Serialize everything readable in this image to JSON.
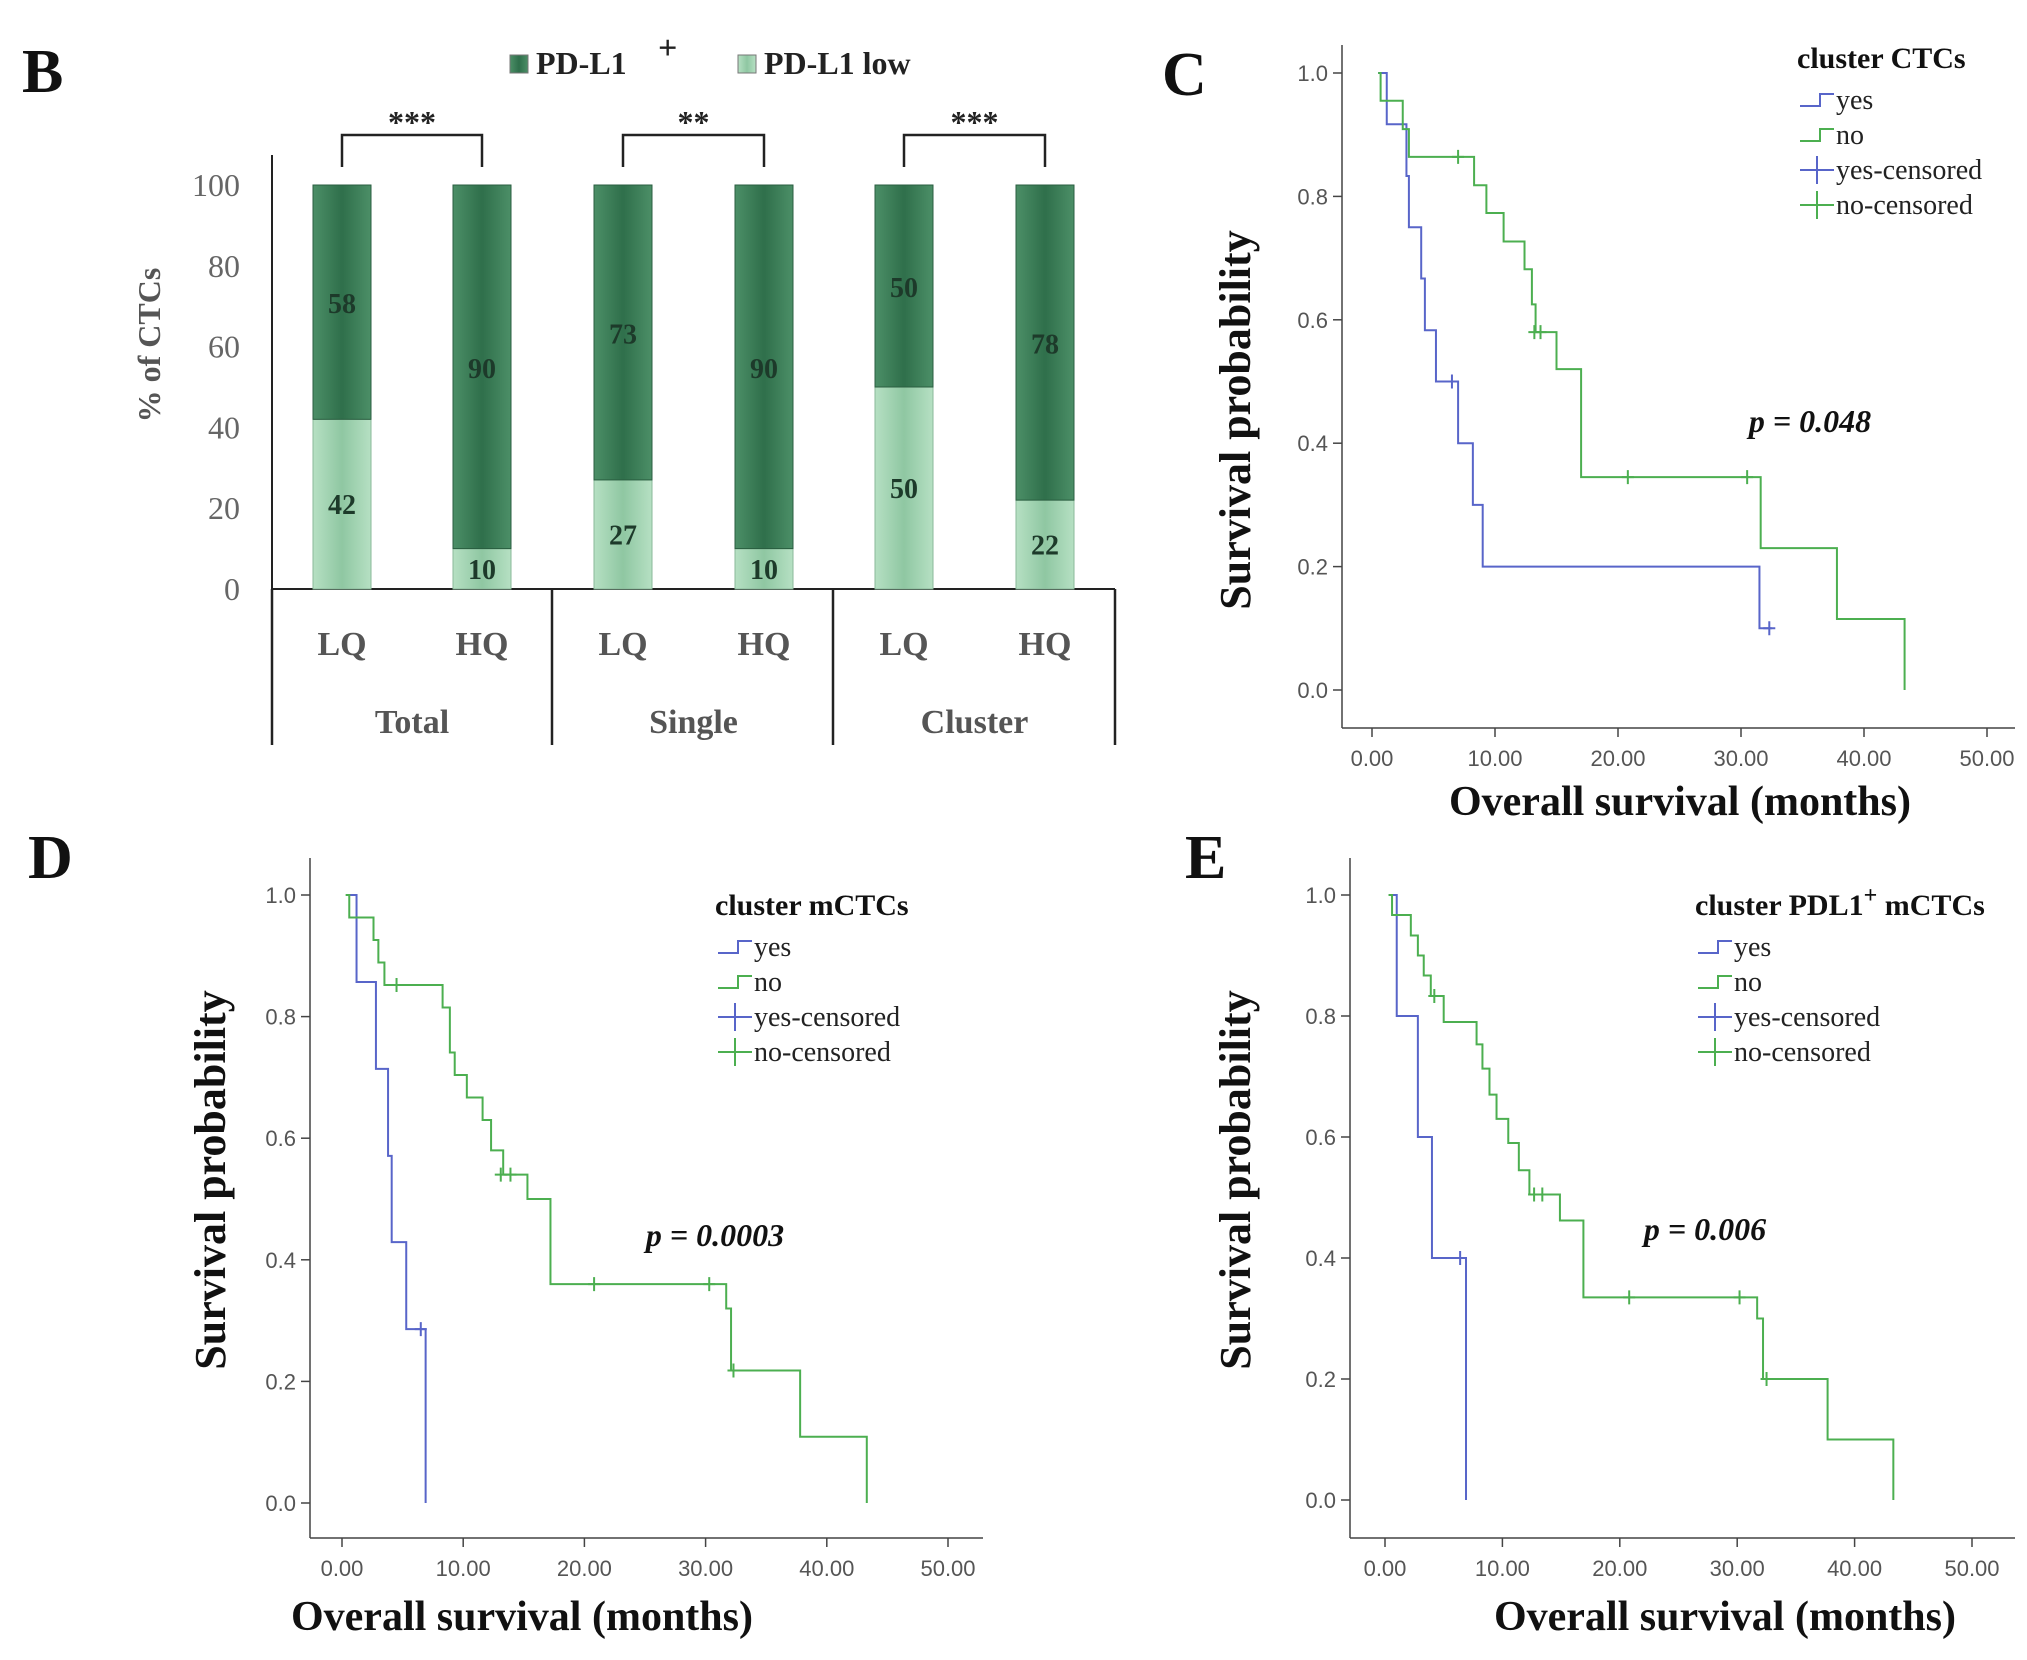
{
  "colors": {
    "pdl1_pos_dark": "#2e6e4a",
    "pdl1_pos_mid": "#5b9a74",
    "pdl1_low_light": "#a8d8b8",
    "pdl1_low_mid": "#c9e9d3",
    "yes_line": "#5865c9",
    "no_line": "#4caf50",
    "axis": "#222222",
    "tick_text": "#555555"
  },
  "chart_data": [
    {
      "id": "B",
      "panel_label": "B",
      "type": "bar",
      "stacked": true,
      "ylabel": "% of CTCs",
      "ylim": [
        0,
        100
      ],
      "yticks": [
        "0",
        "20",
        "40",
        "60",
        "80",
        "100"
      ],
      "legend": [
        {
          "label": "PD-L1",
          "sup": "+",
          "color_key": "pdl1_pos_dark"
        },
        {
          "label": "PD-L1 low",
          "sup": "",
          "color_key": "pdl1_low_light"
        }
      ],
      "groups": [
        {
          "name": "Total",
          "significance": "***",
          "categories": [
            "LQ",
            "HQ"
          ]
        },
        {
          "name": "Single",
          "significance": "**",
          "categories": [
            "LQ",
            "HQ"
          ]
        },
        {
          "name": "Cluster",
          "significance": "***",
          "categories": [
            "LQ",
            "HQ"
          ]
        }
      ],
      "series": [
        {
          "name": "PD-L1 low",
          "values": [
            42,
            10,
            27,
            10,
            50,
            22
          ],
          "labels": [
            "42",
            "10",
            "27",
            "10",
            "50",
            "22"
          ]
        },
        {
          "name": "PD-L1+",
          "values": [
            58,
            90,
            73,
            90,
            50,
            78
          ],
          "labels": [
            "58",
            "90",
            "73",
            "90",
            "50",
            "78"
          ]
        }
      ]
    },
    {
      "id": "C",
      "panel_label": "C",
      "type": "line",
      "subtype": "kaplan-meier",
      "xlabel": "Overall survival (months)",
      "ylabel": "Survival probability",
      "xlim": [
        0,
        50
      ],
      "ylim": [
        0,
        1
      ],
      "xticks": [
        "0.00",
        "10.00",
        "20.00",
        "30.00",
        "40.00",
        "50.00"
      ],
      "yticks": [
        "0.0",
        "0.2",
        "0.4",
        "0.6",
        "0.8",
        "1.0"
      ],
      "legend_title": "cluster CTCs",
      "legend_title_sup": "",
      "legend_title_suffix": "",
      "legend": [
        "yes",
        "no",
        "yes-censored",
        "no-censored"
      ],
      "pvalue": "p = 0.048",
      "series": [
        {
          "name": "yes",
          "color_key": "yes_line",
          "steps": [
            [
              0.5,
              1.0
            ],
            [
              1.2,
              0.917
            ],
            [
              2.8,
              0.833
            ],
            [
              3.0,
              0.75
            ],
            [
              4.0,
              0.667
            ],
            [
              4.3,
              0.583
            ],
            [
              5.2,
              0.5
            ],
            [
              7.0,
              0.4
            ],
            [
              8.2,
              0.3
            ],
            [
              9.0,
              0.2
            ],
            [
              31.5,
              0.1
            ],
            [
              32.5,
              0.1
            ]
          ],
          "censored": [
            [
              6.5,
              0.5
            ],
            [
              32.3,
              0.1
            ]
          ]
        },
        {
          "name": "no",
          "color_key": "no_line",
          "steps": [
            [
              0.5,
              1.0
            ],
            [
              0.7,
              0.955
            ],
            [
              2.5,
              0.909
            ],
            [
              3.0,
              0.864
            ],
            [
              8.3,
              0.818
            ],
            [
              9.3,
              0.773
            ],
            [
              10.7,
              0.727
            ],
            [
              12.4,
              0.682
            ],
            [
              13.0,
              0.625
            ],
            [
              13.3,
              0.58
            ],
            [
              15.0,
              0.52
            ],
            [
              17.0,
              0.345
            ],
            [
              31.6,
              0.23
            ],
            [
              37.8,
              0.115
            ],
            [
              43.3,
              0.0
            ]
          ],
          "censored": [
            [
              7.0,
              0.864
            ],
            [
              13.2,
              0.58
            ],
            [
              13.7,
              0.58
            ],
            [
              20.8,
              0.345
            ],
            [
              30.5,
              0.345
            ]
          ]
        }
      ]
    },
    {
      "id": "D",
      "panel_label": "D",
      "type": "line",
      "subtype": "kaplan-meier",
      "xlabel": "Overall survival (months)",
      "ylabel": "Survival probability",
      "xlim": [
        0,
        50
      ],
      "ylim": [
        0,
        1
      ],
      "xticks": [
        "0.00",
        "10.00",
        "20.00",
        "30.00",
        "40.00",
        "50.00"
      ],
      "yticks": [
        "0.0",
        "0.2",
        "0.4",
        "0.6",
        "0.8",
        "1.0"
      ],
      "legend_title": "cluster mCTCs",
      "legend_title_sup": "",
      "legend_title_suffix": "",
      "legend": [
        "yes",
        "no",
        "yes-censored",
        "no-censored"
      ],
      "pvalue": "p = 0.0003",
      "series": [
        {
          "name": "yes",
          "color_key": "yes_line",
          "steps": [
            [
              0.5,
              1.0
            ],
            [
              1.2,
              0.857
            ],
            [
              2.8,
              0.714
            ],
            [
              3.8,
              0.571
            ],
            [
              4.1,
              0.429
            ],
            [
              5.3,
              0.286
            ],
            [
              6.9,
              0.0
            ]
          ],
          "censored": [
            [
              6.5,
              0.286
            ]
          ]
        },
        {
          "name": "no",
          "color_key": "no_line",
          "steps": [
            [
              0.3,
              1.0
            ],
            [
              0.6,
              0.963
            ],
            [
              2.6,
              0.926
            ],
            [
              3.0,
              0.889
            ],
            [
              3.5,
              0.852
            ],
            [
              8.3,
              0.815
            ],
            [
              8.9,
              0.741
            ],
            [
              9.3,
              0.704
            ],
            [
              10.3,
              0.667
            ],
            [
              11.6,
              0.63
            ],
            [
              12.3,
              0.58
            ],
            [
              13.3,
              0.54
            ],
            [
              15.3,
              0.5
            ],
            [
              17.2,
              0.36
            ],
            [
              31.7,
              0.32
            ],
            [
              32.1,
              0.218
            ],
            [
              37.8,
              0.109
            ],
            [
              43.3,
              0.0
            ]
          ],
          "censored": [
            [
              4.5,
              0.852
            ],
            [
              13.1,
              0.54
            ],
            [
              13.9,
              0.54
            ],
            [
              20.8,
              0.36
            ],
            [
              30.3,
              0.36
            ],
            [
              32.3,
              0.218
            ]
          ]
        }
      ]
    },
    {
      "id": "E",
      "panel_label": "E",
      "type": "line",
      "subtype": "kaplan-meier",
      "xlabel": "Overall survival (months)",
      "ylabel": "Survival probability",
      "xlim": [
        0,
        50
      ],
      "ylim": [
        0,
        1
      ],
      "xticks": [
        "0.00",
        "10.00",
        "20.00",
        "30.00",
        "40.00",
        "50.00"
      ],
      "yticks": [
        "0.0",
        "0.2",
        "0.4",
        "0.6",
        "0.8",
        "1.0"
      ],
      "legend_title": "cluster  PDL1",
      "legend_title_sup": "+",
      "legend_title_suffix": " mCTCs",
      "legend": [
        "yes",
        "no",
        "yes-censored",
        "no-censored"
      ],
      "pvalue": "p = 0.006",
      "series": [
        {
          "name": "yes",
          "color_key": "yes_line",
          "steps": [
            [
              0.5,
              1.0
            ],
            [
              1.0,
              0.8
            ],
            [
              2.8,
              0.6
            ],
            [
              4.0,
              0.4
            ],
            [
              6.9,
              0.0
            ]
          ],
          "censored": [
            [
              6.4,
              0.4
            ]
          ]
        },
        {
          "name": "no",
          "color_key": "no_line",
          "steps": [
            [
              0.3,
              1.0
            ],
            [
              0.6,
              0.967
            ],
            [
              2.2,
              0.933
            ],
            [
              2.8,
              0.9
            ],
            [
              3.3,
              0.867
            ],
            [
              3.9,
              0.833
            ],
            [
              5.0,
              0.79
            ],
            [
              7.8,
              0.753
            ],
            [
              8.3,
              0.713
            ],
            [
              8.9,
              0.67
            ],
            [
              9.5,
              0.63
            ],
            [
              10.5,
              0.59
            ],
            [
              11.4,
              0.545
            ],
            [
              12.3,
              0.505
            ],
            [
              14.9,
              0.462
            ],
            [
              16.9,
              0.335
            ],
            [
              31.7,
              0.3
            ],
            [
              32.2,
              0.2
            ],
            [
              37.7,
              0.1
            ],
            [
              43.3,
              0.0
            ]
          ],
          "censored": [
            [
              4.2,
              0.833
            ],
            [
              12.7,
              0.505
            ],
            [
              13.4,
              0.505
            ],
            [
              20.8,
              0.335
            ],
            [
              30.2,
              0.335
            ],
            [
              32.5,
              0.2
            ]
          ]
        }
      ]
    }
  ]
}
